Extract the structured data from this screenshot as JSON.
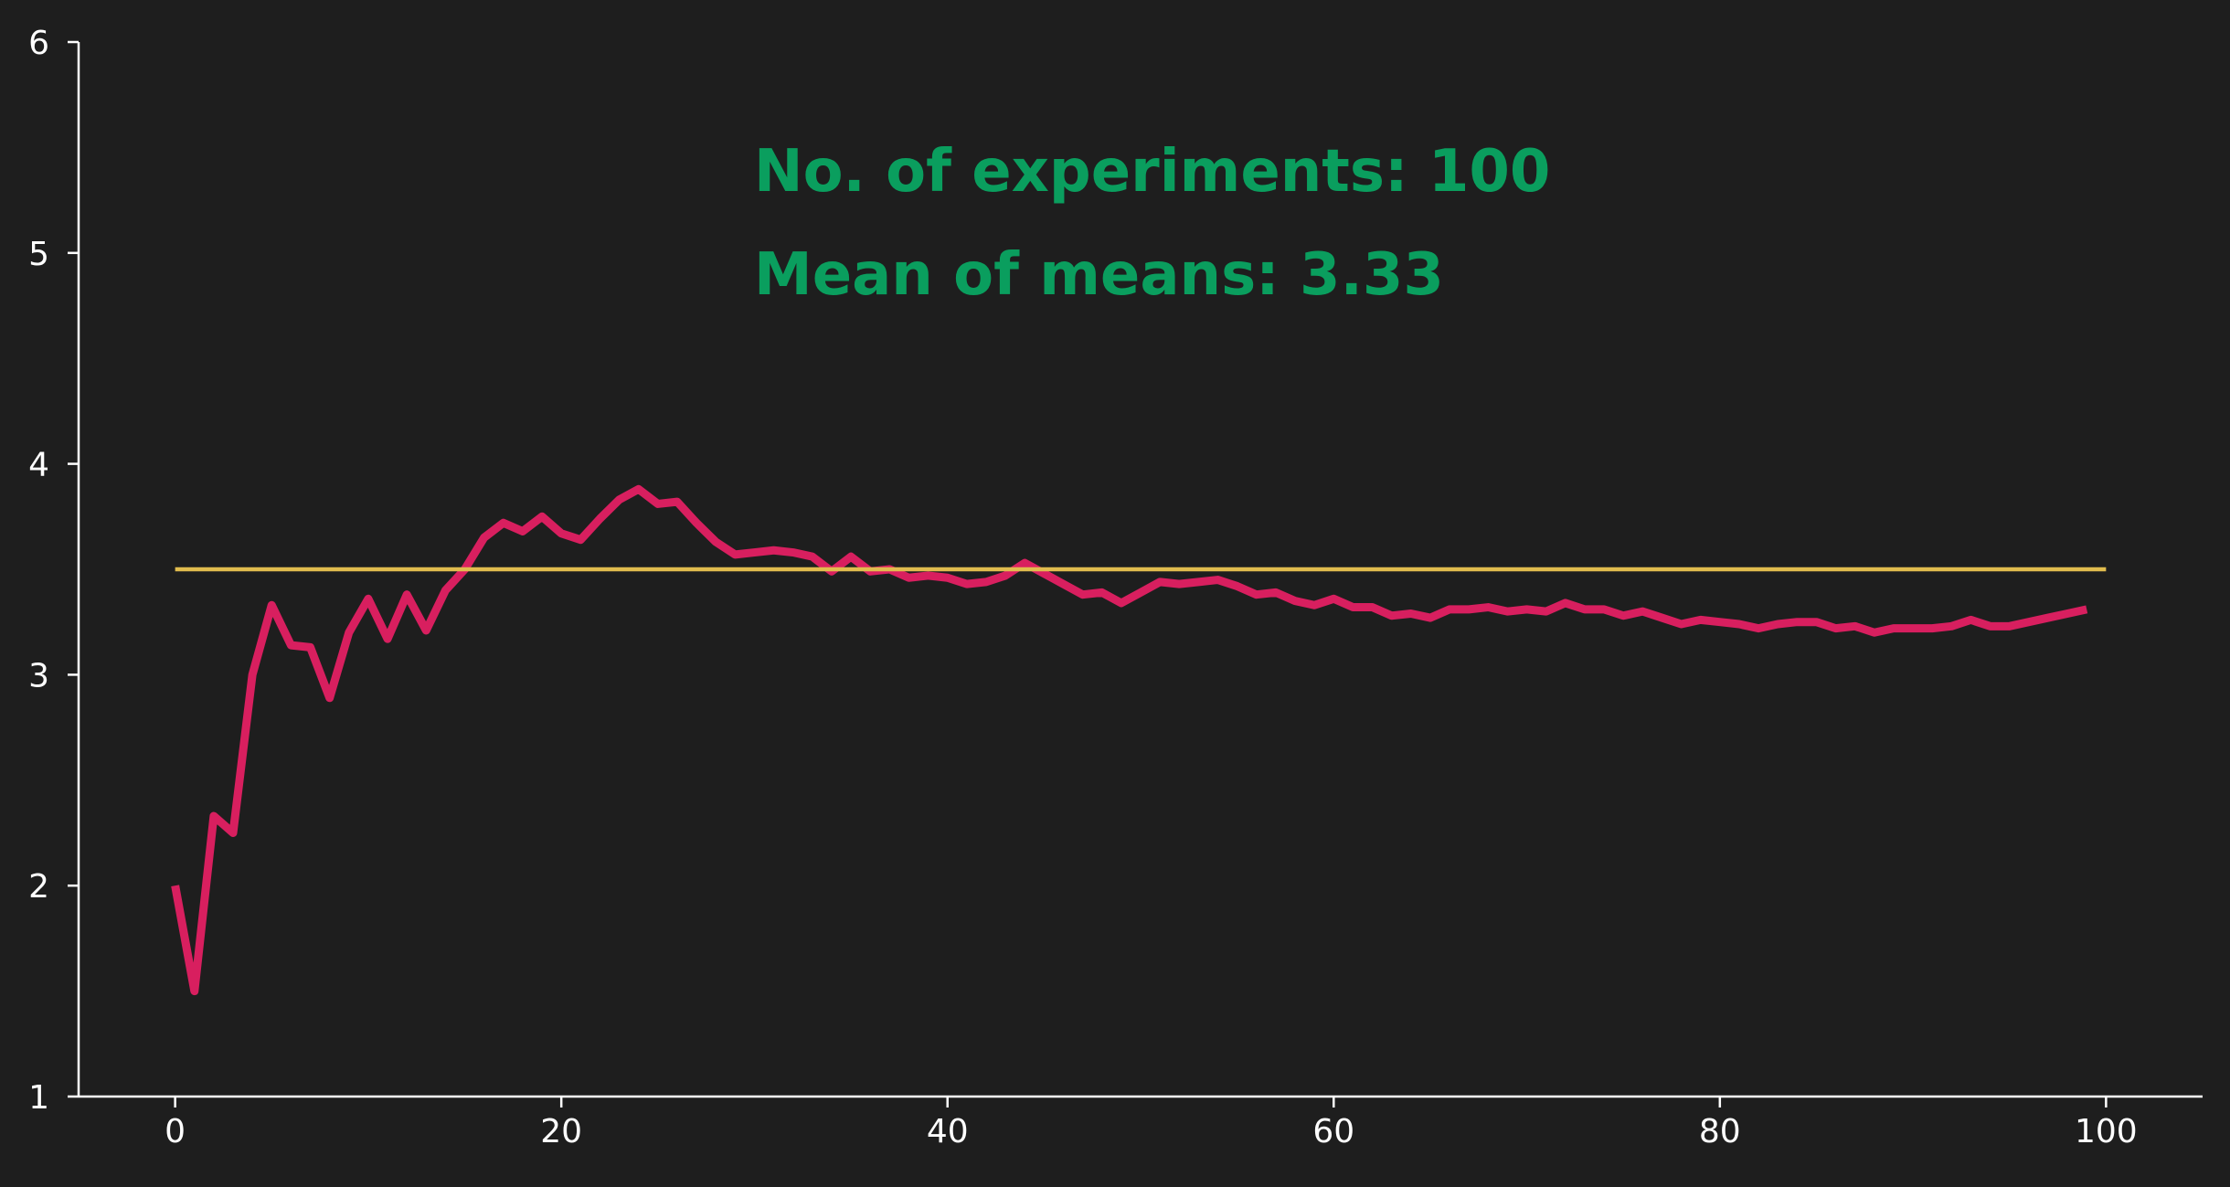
{
  "chart_data": {
    "type": "line",
    "title": "",
    "xlabel": "",
    "ylabel": "",
    "xlim": [
      -5,
      105
    ],
    "ylim": [
      1,
      6
    ],
    "grid": false,
    "x_ticks": [
      0,
      20,
      40,
      60,
      80,
      100
    ],
    "y_ticks": [
      1,
      2,
      3,
      4,
      5,
      6
    ],
    "x_tick_labels": [
      "0",
      "20",
      "40",
      "60",
      "80",
      "100"
    ],
    "y_tick_labels": [
      "1",
      "2",
      "3",
      "4",
      "5",
      "6"
    ],
    "annotations": [
      {
        "text": "No. of experiments: 100",
        "color": "#0a9e5e"
      },
      {
        "text": "Mean of means: 3.33",
        "color": "#0a9e5e"
      }
    ],
    "series": [
      {
        "type": "line",
        "color": "#d81f5f",
        "x": [
          0,
          1,
          2,
          3,
          4,
          5,
          6,
          7,
          8,
          9,
          10,
          11,
          12,
          13,
          14,
          15,
          16,
          17,
          18,
          19,
          20,
          21,
          22,
          23,
          24,
          25,
          26,
          27,
          28,
          29,
          30,
          31,
          32,
          33,
          34,
          35,
          36,
          37,
          38,
          39,
          40,
          41,
          42,
          43,
          44,
          45,
          46,
          47,
          48,
          49,
          50,
          51,
          52,
          53,
          54,
          55,
          56,
          57,
          58,
          59,
          60,
          61,
          62,
          63,
          64,
          65,
          66,
          67,
          68,
          69,
          70,
          71,
          72,
          73,
          74,
          75,
          76,
          77,
          78,
          79,
          80,
          81,
          82,
          83,
          84,
          85,
          86,
          87,
          88,
          89,
          90,
          91,
          92,
          93,
          94,
          95,
          96,
          97,
          98,
          99
        ],
        "y": [
          2.0,
          1.5,
          2.33,
          2.25,
          3.0,
          3.33,
          3.14,
          3.13,
          2.89,
          3.2,
          3.36,
          3.17,
          3.38,
          3.21,
          3.4,
          3.5,
          3.65,
          3.72,
          3.68,
          3.75,
          3.67,
          3.64,
          3.74,
          3.83,
          3.88,
          3.81,
          3.82,
          3.72,
          3.63,
          3.57,
          3.58,
          3.59,
          3.58,
          3.56,
          3.49,
          3.56,
          3.49,
          3.5,
          3.46,
          3.47,
          3.46,
          3.43,
          3.44,
          3.47,
          3.53,
          3.48,
          3.43,
          3.38,
          3.39,
          3.34,
          3.39,
          3.44,
          3.43,
          3.44,
          3.45,
          3.42,
          3.38,
          3.39,
          3.35,
          3.33,
          3.36,
          3.32,
          3.32,
          3.28,
          3.29,
          3.27,
          3.31,
          3.31,
          3.32,
          3.3,
          3.31,
          3.3,
          3.34,
          3.31,
          3.31,
          3.28,
          3.3,
          3.27,
          3.24,
          3.26,
          3.25,
          3.24,
          3.22,
          3.24,
          3.25,
          3.25,
          3.22,
          3.23,
          3.2,
          3.22,
          3.22,
          3.22,
          3.23,
          3.26,
          3.23,
          3.23,
          3.25,
          3.27,
          3.29,
          3.31
        ]
      },
      {
        "type": "hline",
        "color": "#e1bc4e",
        "x": [
          0,
          100
        ],
        "y": [
          3.5,
          3.5
        ]
      }
    ]
  }
}
